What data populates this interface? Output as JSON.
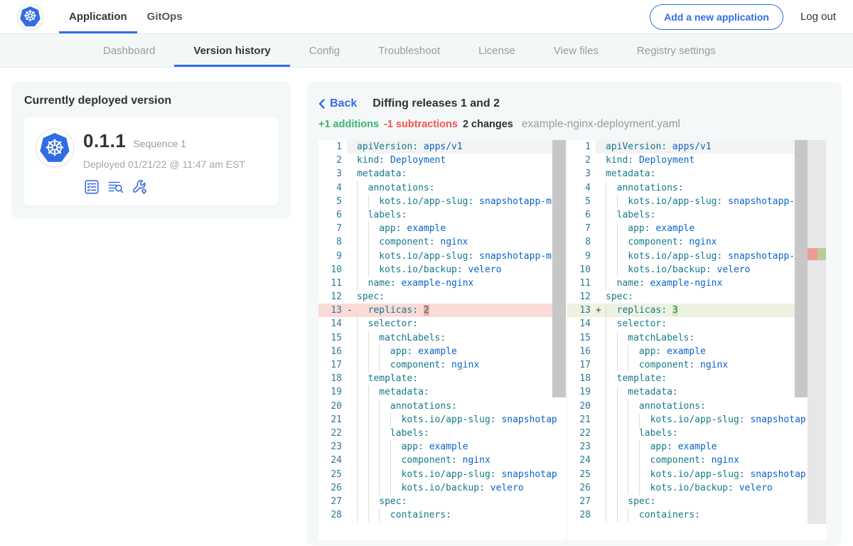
{
  "colors": {
    "accent_blue": "#326de6",
    "k8s_blue": "#326ce5",
    "addition_green": "#3cb46e",
    "subtraction_red": "#f2564d",
    "diff_row_red": "#fbdbd8",
    "diff_row_green": "#edf2e1",
    "code_key_teal": "#137a8a",
    "code_value_blue": "#0a63cb",
    "code_number_green": "#098658",
    "panel_bg": "#f5f8f9"
  },
  "top_nav": {
    "brand_icon": "kubernetes-helm-icon",
    "items": [
      {
        "label": "Application",
        "active": true
      },
      {
        "label": "GitOps",
        "active": false
      }
    ],
    "add_button_label": "Add a new application",
    "logout_label": "Log out"
  },
  "sub_nav": {
    "tabs": [
      {
        "label": "Dashboard",
        "active": false
      },
      {
        "label": "Version history",
        "active": true
      },
      {
        "label": "Config",
        "active": false
      },
      {
        "label": "Troubleshoot",
        "active": false
      },
      {
        "label": "License",
        "active": false
      },
      {
        "label": "View files",
        "active": false
      },
      {
        "label": "Registry settings",
        "active": false
      }
    ]
  },
  "deployed_card": {
    "title": "Currently deployed version",
    "version": "0.1.1",
    "sequence": "Sequence 1",
    "deployed_text": "Deployed 01/21/22 @ 11:47 am EST",
    "action_icons": [
      "release-notes-icon",
      "deploy-logs-icon",
      "edit-config-icon"
    ]
  },
  "diff": {
    "back_label": "Back",
    "title": "Diffing releases 1 and 2",
    "additions_label": "+1 additions",
    "subtractions_label": "-1 subtractions",
    "changes_label": "2 changes",
    "filename": "example-nginx-deployment.yaml",
    "del_marker": "-",
    "add_marker": "+",
    "lines": [
      {
        "n": 1,
        "t": "apiVersion: apps/v1",
        "cur": true
      },
      {
        "n": 2,
        "t": "kind: Deployment"
      },
      {
        "n": 3,
        "t": "metadata:"
      },
      {
        "n": 4,
        "t": "  annotations:"
      },
      {
        "n": 5,
        "t": "    kots.io/app-slug: snapshotapp-mu"
      },
      {
        "n": 6,
        "t": "  labels:"
      },
      {
        "n": 7,
        "t": "    app: example"
      },
      {
        "n": 8,
        "t": "    component: nginx"
      },
      {
        "n": 9,
        "t": "    kots.io/app-slug: snapshotapp-mu"
      },
      {
        "n": 10,
        "t": "    kots.io/backup: velero"
      },
      {
        "n": 11,
        "t": "  name: example-nginx"
      },
      {
        "n": 12,
        "t": "spec:"
      },
      {
        "n": 13,
        "l": "  replicas: 2",
        "r": "  replicas: 3",
        "changed": true
      },
      {
        "n": 14,
        "t": "  selector:"
      },
      {
        "n": 15,
        "t": "    matchLabels:"
      },
      {
        "n": 16,
        "t": "      app: example"
      },
      {
        "n": 17,
        "t": "      component: nginx"
      },
      {
        "n": 18,
        "t": "  template:"
      },
      {
        "n": 19,
        "t": "    metadata:"
      },
      {
        "n": 20,
        "t": "      annotations:"
      },
      {
        "n": 21,
        "t": "        kots.io/app-slug: snapshotap"
      },
      {
        "n": 22,
        "t": "      labels:"
      },
      {
        "n": 23,
        "t": "        app: example"
      },
      {
        "n": 24,
        "t": "        component: nginx"
      },
      {
        "n": 25,
        "t": "        kots.io/app-slug: snapshotap"
      },
      {
        "n": 26,
        "t": "        kots.io/backup: velero"
      },
      {
        "n": 27,
        "t": "    spec:"
      },
      {
        "n": 28,
        "t": "      containers:"
      }
    ]
  }
}
